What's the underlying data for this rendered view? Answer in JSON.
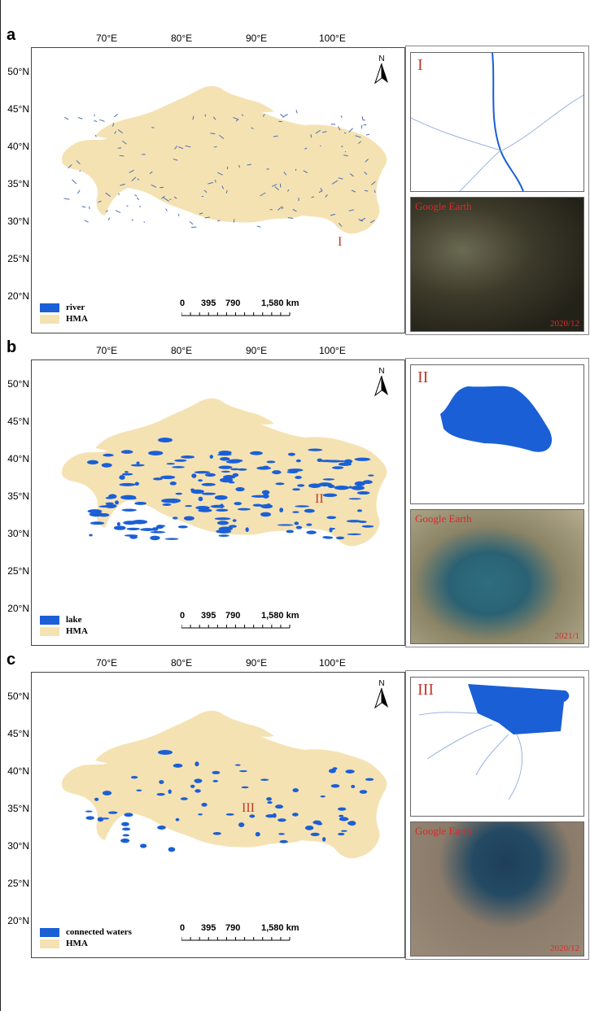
{
  "panels": [
    {
      "letter": "a",
      "legend": [
        {
          "label": "river",
          "color": "#1a5fd6"
        },
        {
          "label": "HMA",
          "color": "#f5e2b3"
        }
      ],
      "inset_label": "I",
      "map_marker": "I",
      "ge_label": "Google Earth",
      "date_label": "2020/12"
    },
    {
      "letter": "b",
      "legend": [
        {
          "label": "lake",
          "color": "#1a5fd6"
        },
        {
          "label": "HMA",
          "color": "#f5e2b3"
        }
      ],
      "inset_label": "II",
      "map_marker": "II",
      "ge_label": "Google Earth",
      "date_label": "2021/1"
    },
    {
      "letter": "c",
      "legend": [
        {
          "label": "connected waters",
          "color": "#1a5fd6"
        },
        {
          "label": "HMA",
          "color": "#f5e2b3"
        }
      ],
      "inset_label": "III",
      "map_marker": "III",
      "ge_label": "Google Earth",
      "date_label": "2020/12"
    }
  ],
  "lon_labels": [
    "70°E",
    "80°E",
    "90°E",
    "100°E"
  ],
  "lat_labels": [
    "50°N",
    "45°N",
    "40°N",
    "35°N",
    "30°N",
    "25°N",
    "20°N"
  ],
  "scale_labels": [
    "0",
    "395",
    "790",
    "1,580 km"
  ],
  "north_label": "N",
  "colors": {
    "water": "#1a5fd6",
    "hma": "#f5e2b3",
    "marker": "#c0392b"
  }
}
